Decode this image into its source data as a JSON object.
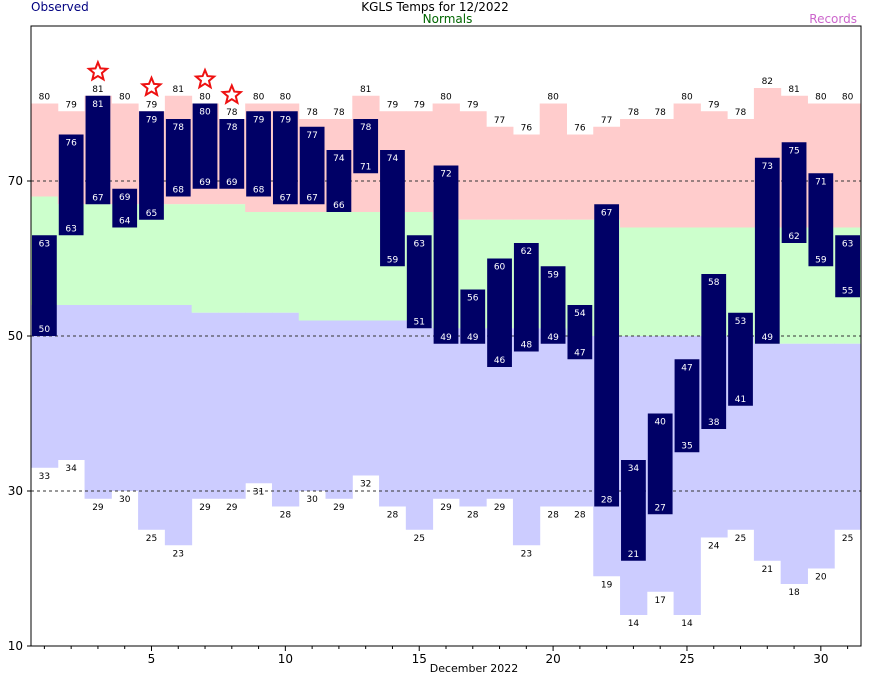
{
  "header": {
    "title": "KGLS Temps for 12/2022",
    "observed_label": "Observed",
    "normals_label": "Normals",
    "records_label": "Records"
  },
  "colors": {
    "observed_bar": "#000066",
    "normal_band": "#ccffcc",
    "record_high_band": "#ffcccc",
    "record_low_band": "#ccccff",
    "observed_label": "#000080",
    "normals_label": "#006600",
    "records_label": "#cc66cc",
    "record_star": "#ee1111"
  },
  "chart_data": {
    "type": "bar",
    "subtype": "floating-range",
    "title": "KGLS Temps for 12/2022",
    "xlabel": "December 2022",
    "ylabel": "",
    "ylim": [
      10,
      90
    ],
    "yticks": [
      10,
      30,
      50,
      70
    ],
    "xticks": [
      5,
      10,
      15,
      20,
      25,
      30
    ],
    "days": [
      1,
      2,
      3,
      4,
      5,
      6,
      7,
      8,
      9,
      10,
      11,
      12,
      13,
      14,
      15,
      16,
      17,
      18,
      19,
      20,
      21,
      22,
      23,
      24,
      25,
      26,
      27,
      28,
      29,
      30,
      31
    ],
    "series": [
      {
        "name": "Observed",
        "high": [
          63,
          76,
          81,
          69,
          79,
          78,
          80,
          78,
          79,
          79,
          77,
          74,
          78,
          74,
          63,
          72,
          56,
          60,
          62,
          59,
          54,
          67,
          34,
          40,
          47,
          58,
          53,
          73,
          75,
          71,
          63
        ],
        "low": [
          50,
          63,
          67,
          64,
          65,
          68,
          69,
          69,
          68,
          67,
          67,
          66,
          71,
          59,
          51,
          49,
          49,
          46,
          48,
          49,
          47,
          28,
          21,
          27,
          35,
          38,
          41,
          49,
          62,
          59,
          55
        ]
      },
      {
        "name": "Normals",
        "high": [
          68,
          67,
          67,
          67,
          67,
          67,
          67,
          67,
          66,
          66,
          66,
          66,
          66,
          66,
          66,
          65,
          65,
          65,
          65,
          65,
          65,
          65,
          64,
          64,
          64,
          64,
          64,
          64,
          64,
          64,
          64
        ],
        "low": [
          54,
          54,
          54,
          54,
          54,
          54,
          53,
          53,
          53,
          53,
          52,
          52,
          52,
          52,
          52,
          51,
          51,
          51,
          51,
          51,
          50,
          50,
          50,
          50,
          50,
          50,
          50,
          49,
          49,
          49,
          49
        ]
      },
      {
        "name": "Records",
        "high": [
          80,
          79,
          81,
          80,
          79,
          81,
          80,
          78,
          80,
          80,
          78,
          78,
          81,
          79,
          79,
          80,
          79,
          77,
          76,
          80,
          76,
          77,
          78,
          78,
          80,
          79,
          78,
          82,
          81,
          80,
          80
        ],
        "low": [
          33,
          34,
          29,
          30,
          25,
          23,
          29,
          29,
          31,
          28,
          30,
          29,
          32,
          28,
          25,
          29,
          28,
          29,
          23,
          28,
          28,
          19,
          14,
          17,
          14,
          24,
          25,
          21,
          18,
          20,
          25
        ]
      }
    ],
    "record_high_days": [
      3,
      5,
      7,
      8
    ],
    "dashed_grid_y": [
      30,
      50,
      70
    ],
    "legend": "top"
  }
}
